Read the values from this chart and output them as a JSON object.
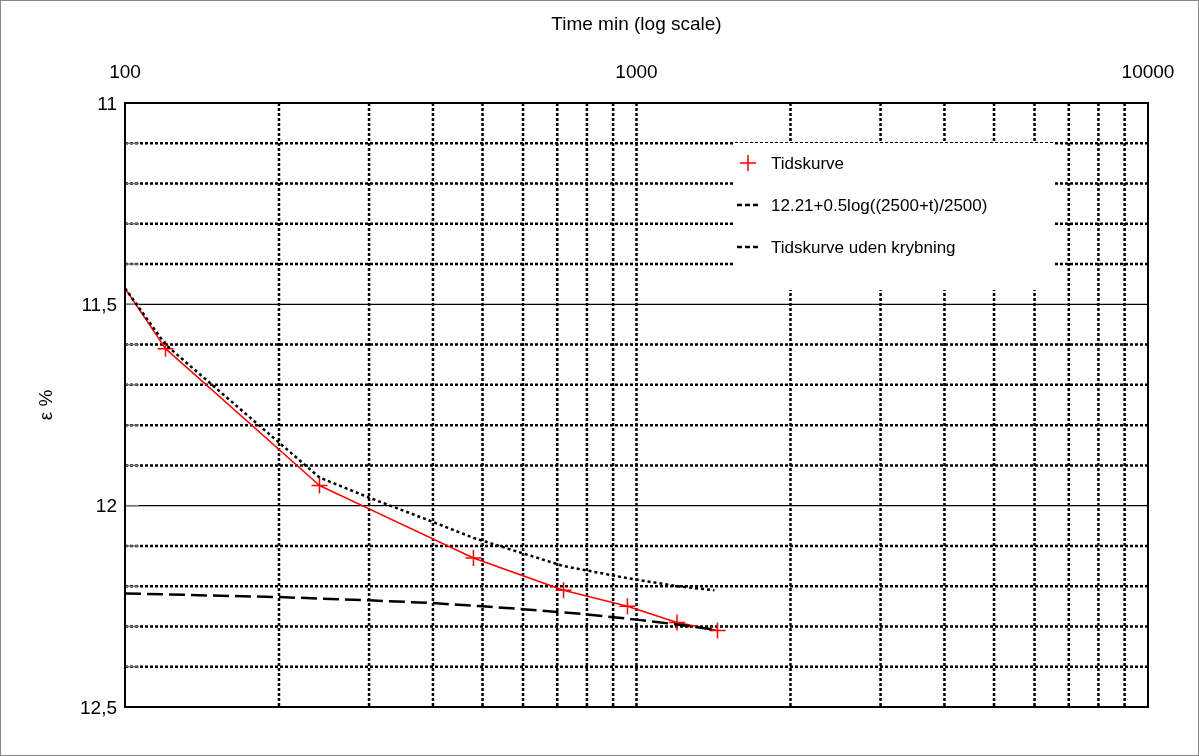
{
  "chart_data": {
    "type": "line",
    "xlabel": "Time min  (log scale)",
    "ylabel": "ε %",
    "log": "x",
    "grid": true,
    "legend": "top right",
    "xlim": [
      100,
      10000
    ],
    "xticks": [
      100,
      {
        "value": 200,
        "label": null
      },
      {
        "value": 300,
        "label": null
      },
      {
        "value": 400,
        "label": null
      },
      {
        "value": 500,
        "label": null
      },
      {
        "value": 600,
        "label": null
      },
      {
        "value": 700,
        "label": null
      },
      {
        "value": 800,
        "label": null
      },
      {
        "value": 900,
        "label": null
      },
      1000,
      {
        "value": 2000,
        "label": null
      },
      {
        "value": 3000,
        "label": null
      },
      {
        "value": 4000,
        "label": null
      },
      {
        "value": 5000,
        "label": null
      },
      {
        "value": 6000,
        "label": null
      },
      {
        "value": 7000,
        "label": null
      },
      {
        "value": 8000,
        "label": null
      },
      {
        "value": 9000,
        "label": null
      },
      10000
    ],
    "ylim": [
      12.5,
      11
    ],
    "yticks": [
      11,
      {
        "value": 11.1,
        "label": null
      },
      {
        "value": 11.2,
        "label": null
      },
      {
        "value": 11.3,
        "label": null
      },
      {
        "value": 11.4,
        "label": null
      },
      {
        "value": 11.5,
        "label": "11,5"
      },
      {
        "value": 11.6,
        "label": null
      },
      {
        "value": 11.7,
        "label": null
      },
      {
        "value": 11.8,
        "label": null
      },
      {
        "value": 11.9,
        "label": null
      },
      12,
      {
        "value": 12.1,
        "label": null
      },
      {
        "value": 12.2,
        "label": null
      },
      {
        "value": 12.3,
        "label": null
      },
      {
        "value": 12.4,
        "label": null
      },
      {
        "value": 12.5,
        "label": "12,5"
      }
    ],
    "series": [
      {
        "name": "Tidskurve",
        "color": "#ff0000",
        "marker": "cross",
        "line_style": "solid",
        "x": [
          100,
          120,
          240,
          480,
          720,
          960,
          1200,
          1440
        ],
        "values": [
          11.46,
          11.61,
          11.95,
          12.13,
          12.21,
          12.25,
          12.29,
          12.31
        ]
      },
      {
        "name": "12.21+0.5log((2500+t)/2500)",
        "color": "#000000",
        "marker": "none",
        "line_style": "dashed",
        "x": [
          100,
          200,
          300,
          400,
          500,
          600,
          700,
          800,
          1000,
          1200,
          1440
        ],
        "values": [
          12.218,
          12.227,
          12.235,
          12.242,
          12.25,
          12.257,
          12.264,
          12.27,
          12.283,
          12.295,
          12.309
        ]
      },
      {
        "name": "Tidskurve uden krybning",
        "color": "#000000",
        "marker": "none",
        "line_style": "dotted",
        "x": [
          100,
          120,
          240,
          300,
          390,
          480,
          720,
          960,
          1200,
          1420
        ],
        "values": [
          11.46,
          11.6,
          11.93,
          11.98,
          12.035,
          12.08,
          12.15,
          12.18,
          12.2,
          12.21
        ]
      }
    ]
  }
}
